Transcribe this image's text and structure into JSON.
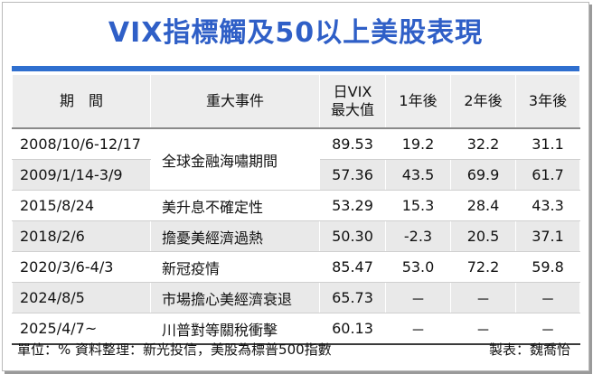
{
  "title": "VIX指標觸及50以上美股表現",
  "table": {
    "headers": {
      "period": "期　間",
      "event": "重大事件",
      "vix_line1": "日VIX",
      "vix_line2": "最大值",
      "y1": "1年後",
      "y2": "2年後",
      "y3": "3年後"
    },
    "rows": [
      {
        "period": "2008/10/6-12/17",
        "event": "全球金融海嘯期間",
        "vix": "89.53",
        "y1": "19.2",
        "y2": "32.2",
        "y3": "31.1"
      },
      {
        "period": "2009/1/14-3/9",
        "event": "",
        "vix": "57.36",
        "y1": "43.5",
        "y2": "69.9",
        "y3": "61.7"
      },
      {
        "period": "2015/8/24",
        "event": "美升息不確定性",
        "vix": "53.29",
        "y1": "15.3",
        "y2": "28.4",
        "y3": "43.3"
      },
      {
        "period": "2018/2/6",
        "event": "擔憂美經濟過熱",
        "vix": "50.30",
        "y1": "-2.3",
        "y2": "20.5",
        "y3": "37.1"
      },
      {
        "period": "2020/3/6-4/3",
        "event": "新冠疫情",
        "vix": "85.47",
        "y1": "53.0",
        "y2": "72.2",
        "y3": "59.8"
      },
      {
        "period": "2024/8/5",
        "event": "市場擔心美經濟衰退",
        "vix": "65.73",
        "y1": "－",
        "y2": "－",
        "y3": "－"
      },
      {
        "period": "2025/4/7~",
        "event": "川普對等關稅衝擊",
        "vix": "60.13",
        "y1": "－",
        "y2": "－",
        "y3": "－"
      }
    ]
  },
  "footer": {
    "left": "單位：%  資料整理：新光投信，美股為標普500指數",
    "right": "製表：魏喬怡"
  },
  "colors": {
    "title": "#2f5fc7",
    "rule": "#2f6fcf",
    "header_bg": "#ededed",
    "stripe_bg": "#e9e9e9"
  }
}
